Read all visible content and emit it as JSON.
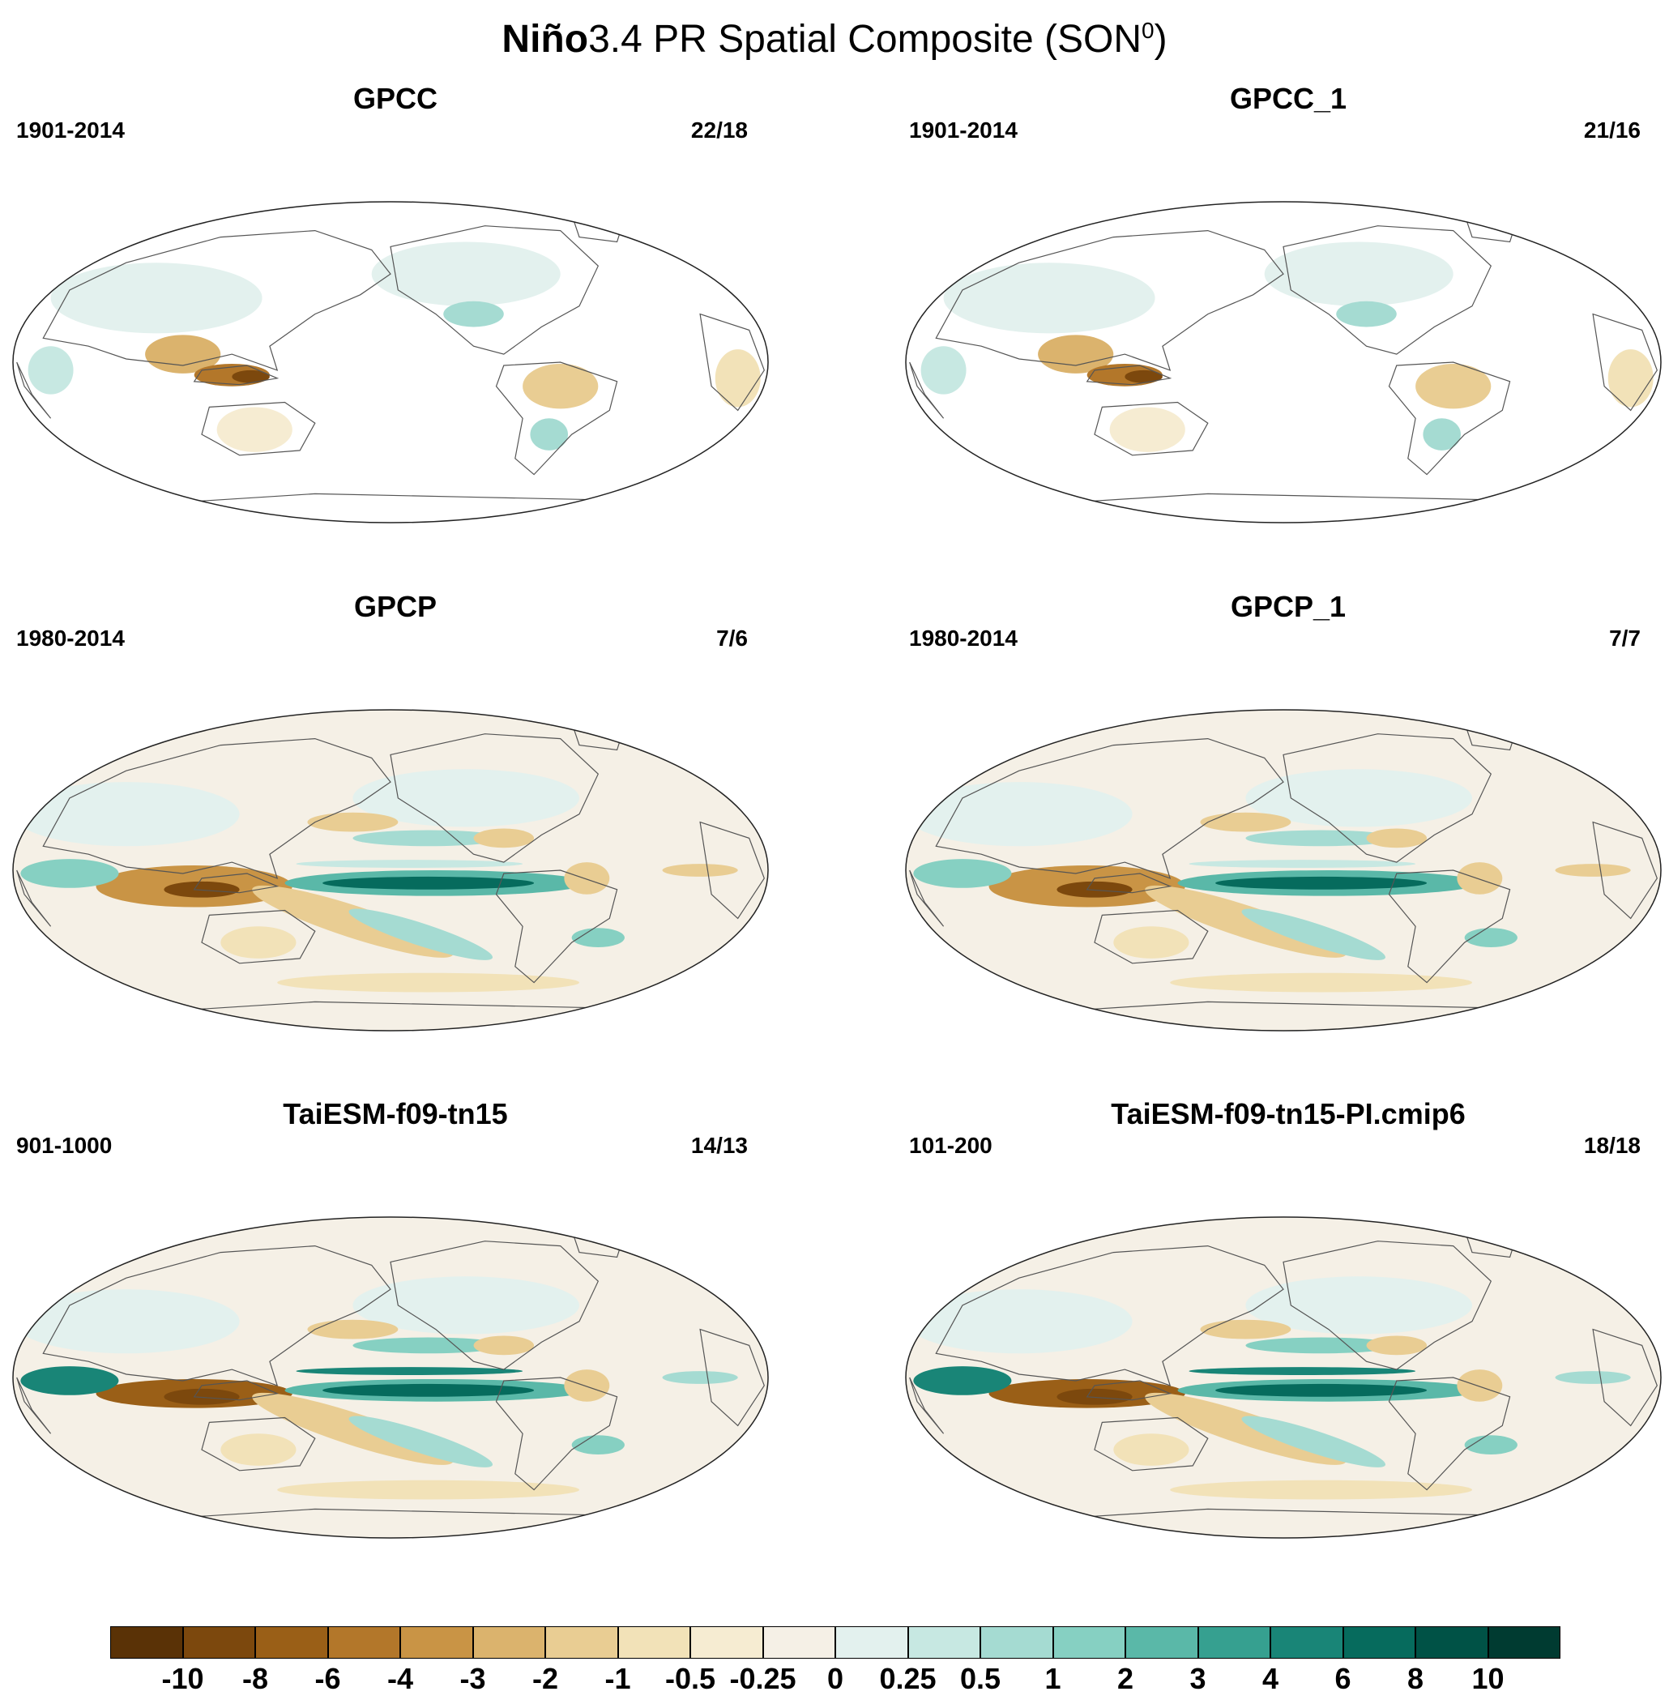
{
  "title": {
    "bold": "Niño",
    "rest": "3.4 PR Spatial Composite (SON",
    "sup": "0",
    "close": ")"
  },
  "panels": [
    {
      "name": "GPCC",
      "years": "1901-2014",
      "count": "22/18",
      "style": "land"
    },
    {
      "name": "GPCC_1",
      "years": "1901-2014",
      "count": "21/16",
      "style": "land"
    },
    {
      "name": "GPCP",
      "years": "1980-2014",
      "count": "7/6",
      "style": "obs"
    },
    {
      "name": "GPCP_1",
      "years": "1980-2014",
      "count": "7/7",
      "style": "obs"
    },
    {
      "name": "TaiESM-f09-tn15",
      "years": "901-1000",
      "count": "14/13",
      "style": "model"
    },
    {
      "name": "TaiESM-f09-tn15-PI.cmip6",
      "years": "101-200",
      "count": "18/18",
      "style": "model"
    }
  ],
  "colorbar": {
    "labels": [
      "-10",
      "-8",
      "-6",
      "-4",
      "-3",
      "-2",
      "-1",
      "-0.5",
      "-0.25",
      "0",
      "0.25",
      "0.5",
      "1",
      "2",
      "3",
      "4",
      "6",
      "8",
      "10"
    ],
    "colors": [
      "#5a3206",
      "#7c480d",
      "#9a5f17",
      "#b3772a",
      "#c99445",
      "#dbb36d",
      "#e9cd93",
      "#f2e2b8",
      "#f6ecd2",
      "#f5f0e6",
      "#e3f1ee",
      "#c7e8e2",
      "#a5dbd2",
      "#86d0c2",
      "#5ab8a8",
      "#36a090",
      "#198577",
      "#066b5d",
      "#005246",
      "#003b31"
    ]
  }
}
